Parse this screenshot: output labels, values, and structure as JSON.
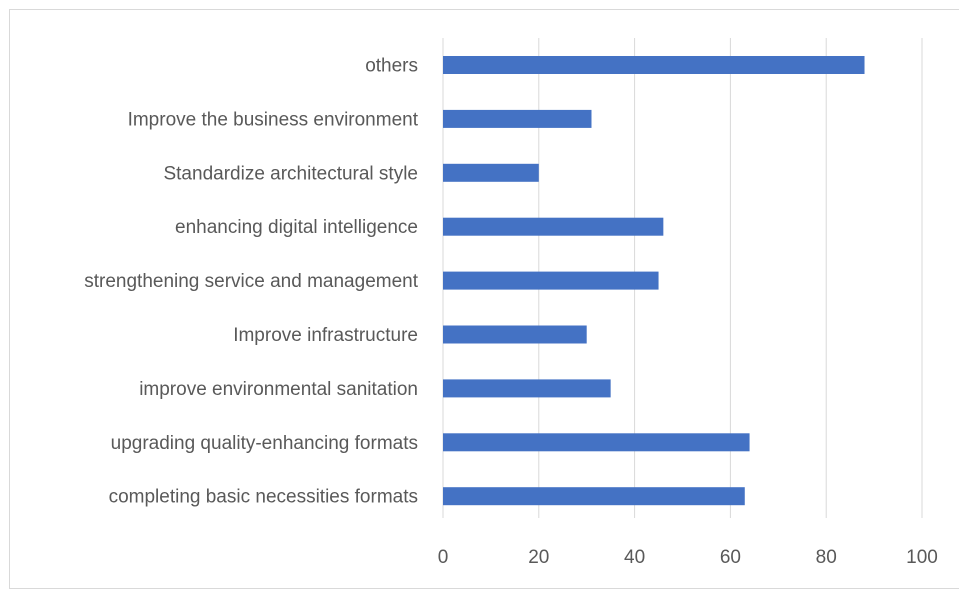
{
  "chart_data": {
    "type": "bar",
    "orientation": "horizontal",
    "categories": [
      "others",
      "Improve the business environment",
      "Standardize architectural style",
      "enhancing digital intelligence",
      "strengthening service and management",
      "Improve infrastructure",
      "improve environmental sanitation",
      "upgrading quality-enhancing formats",
      "completing basic necessities formats"
    ],
    "values": [
      88,
      31,
      20,
      46,
      45,
      30,
      35,
      64,
      63
    ],
    "xlim": [
      0,
      100
    ],
    "xticks": [
      "0",
      "20",
      "40",
      "60",
      "80",
      "100"
    ],
    "grid": true,
    "legend": "none",
    "bar_color": "#4472c4",
    "grid_color": "#d9d9d9",
    "text_color": "#595959"
  }
}
